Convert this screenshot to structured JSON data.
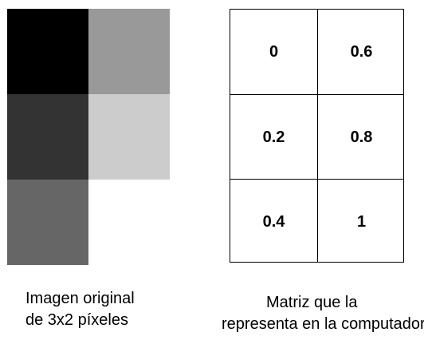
{
  "pixel_image": {
    "pixels": [
      {
        "row": 0,
        "col": 0,
        "color": "#000000"
      },
      {
        "row": 0,
        "col": 1,
        "color": "#999999"
      },
      {
        "row": 1,
        "col": 0,
        "color": "#333333"
      },
      {
        "row": 1,
        "col": 1,
        "color": "#cccccc"
      },
      {
        "row": 2,
        "col": 0,
        "color": "#666666"
      },
      {
        "row": 2,
        "col": 1,
        "color": "#ffffff"
      }
    ]
  },
  "matrix": {
    "rows": [
      [
        "0",
        "0.6"
      ],
      [
        "0.2",
        "0.8"
      ],
      [
        "0.4",
        "1"
      ]
    ]
  },
  "captions": {
    "left_line1": "Imagen original",
    "left_line2": "de 3x2 píxeles",
    "right_line1": "Matriz que la",
    "right_line2": "representa en la computadora"
  }
}
